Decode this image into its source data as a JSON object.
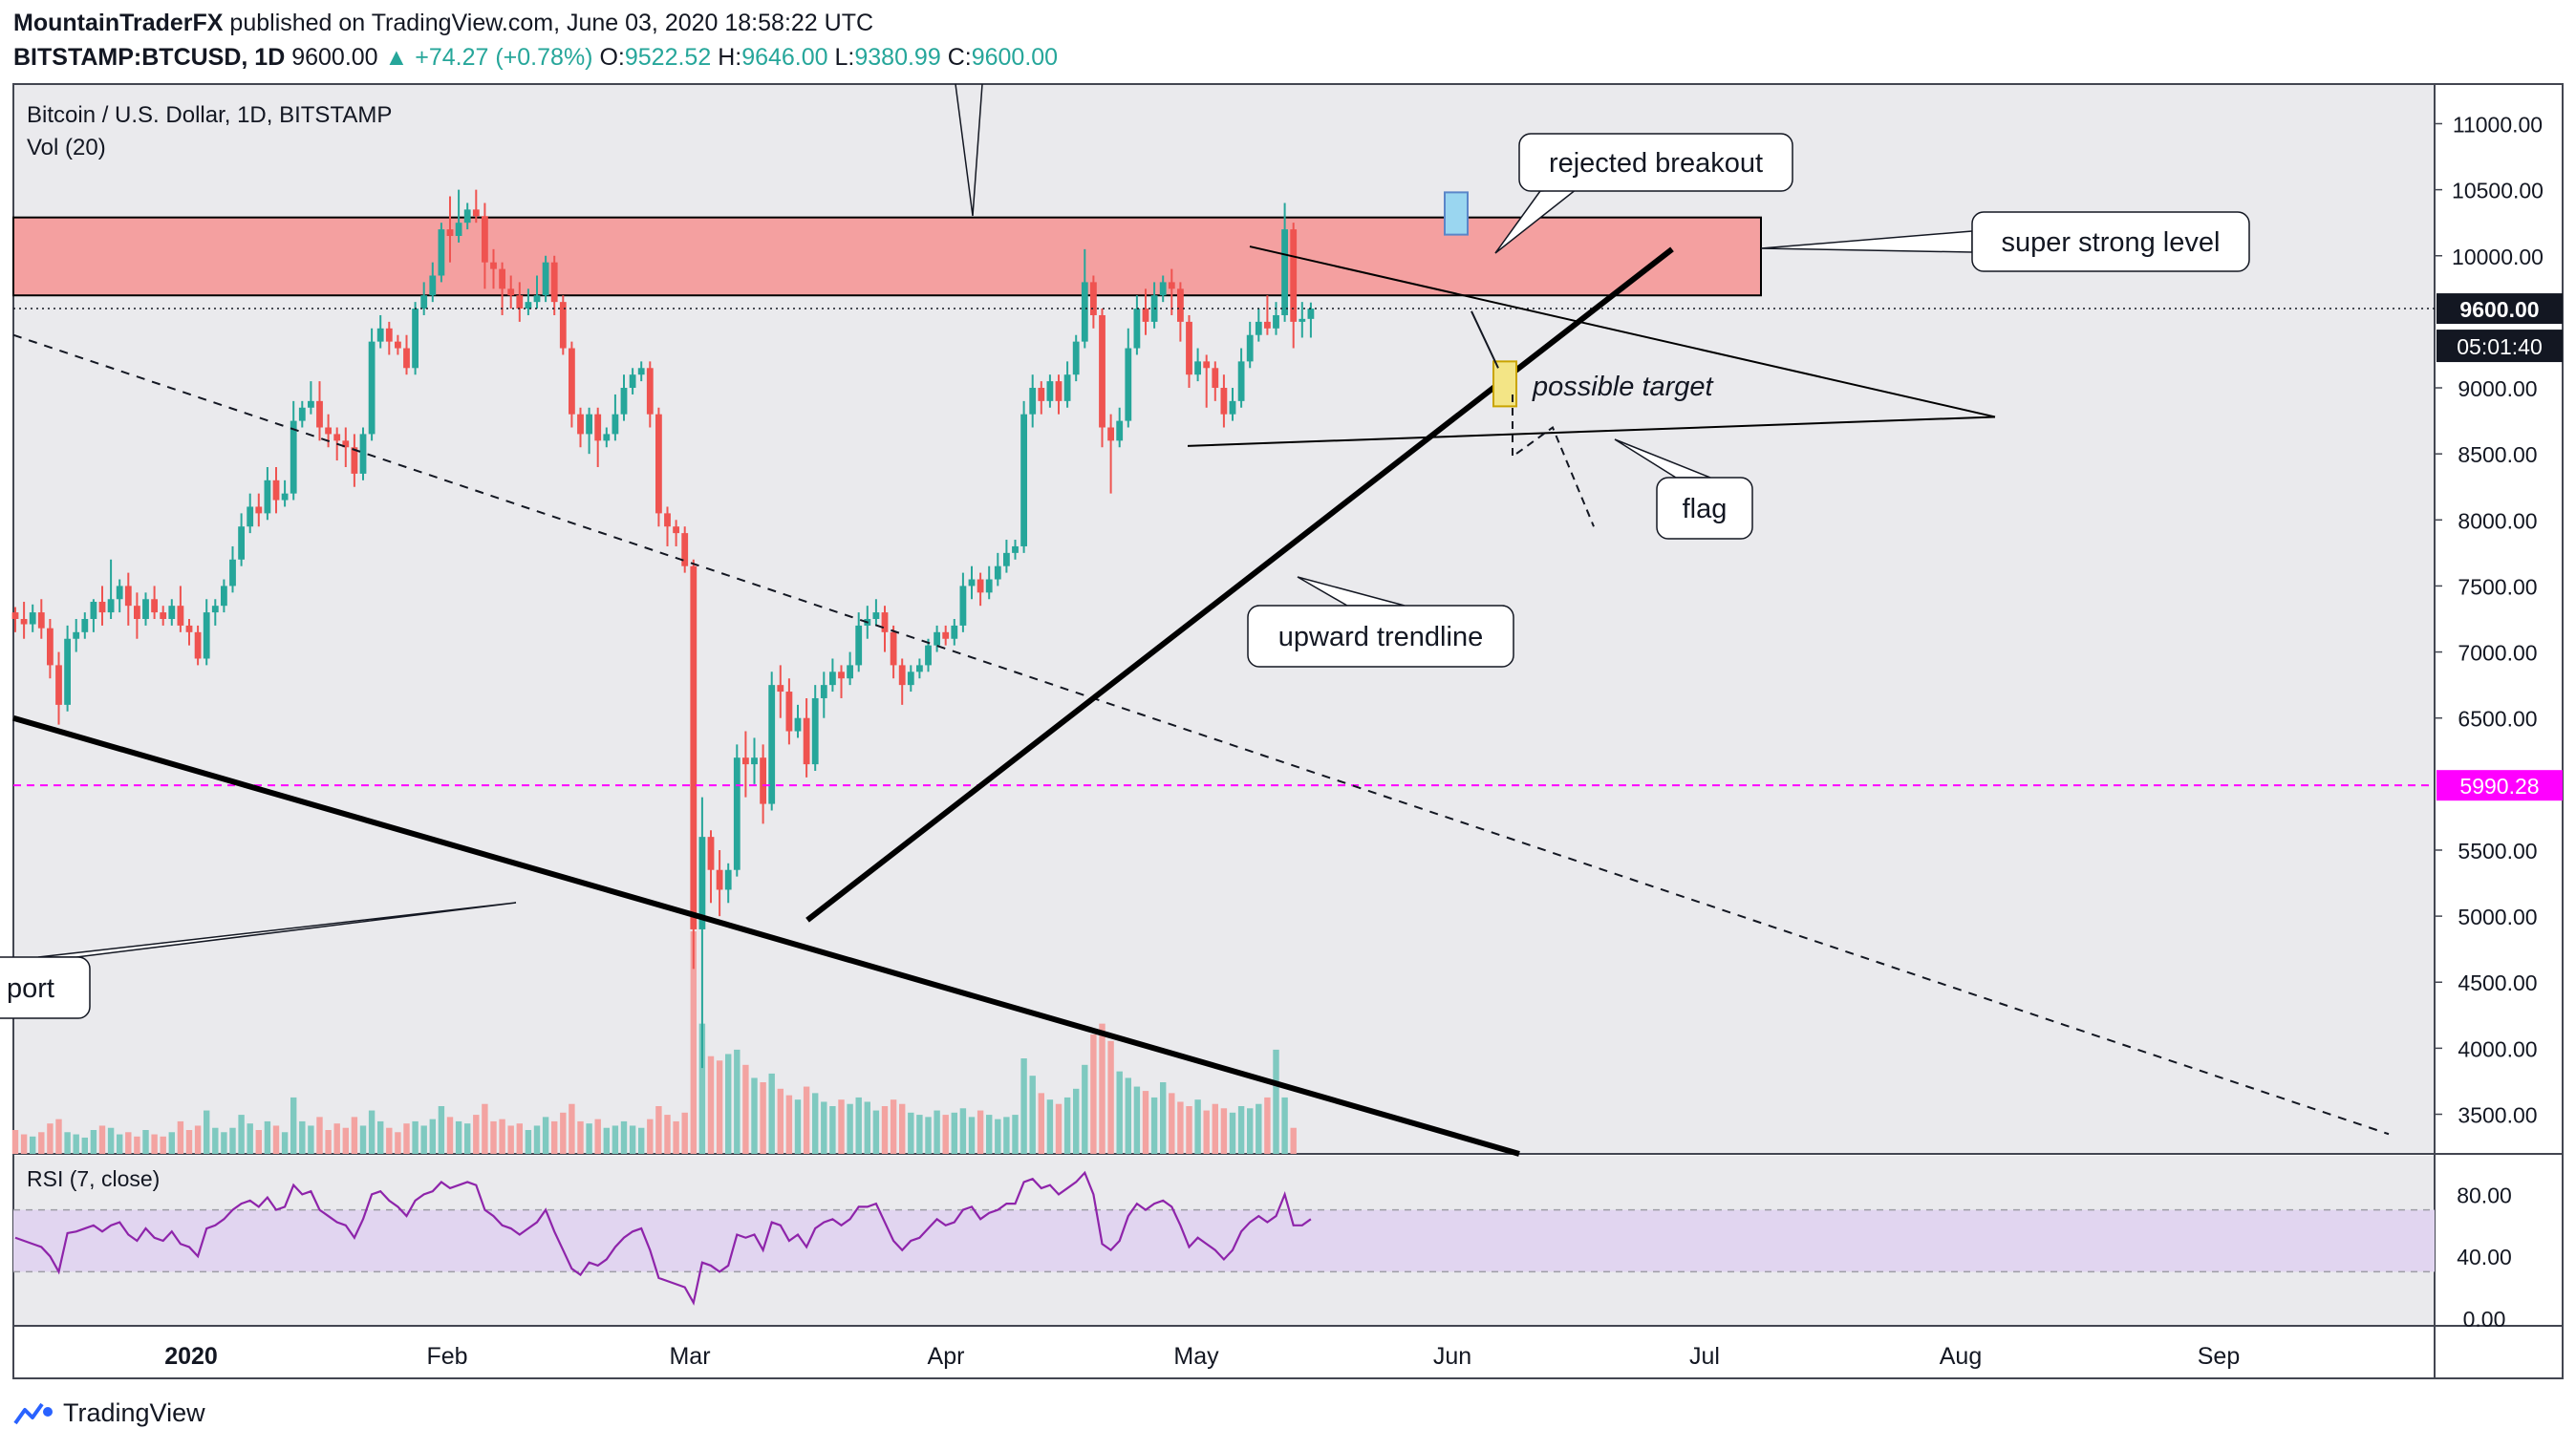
{
  "header": {
    "author": "MountainTraderFX",
    "published": "published on TradingView.com, June 03, 2020 18:58:22 UTC",
    "symbol": "BITSTAMP:BTCUSD, 1D",
    "last": "9600.00",
    "change": "+74.27 (+0.78%)",
    "o_label": "O:",
    "o_value": "9522.52",
    "h_label": "H:",
    "h_value": "9646.00",
    "l_label": "L:",
    "l_value": "9380.99",
    "c_label": "C:",
    "c_value": "9600.00",
    "up_arrow": "▲"
  },
  "footer": {
    "brand": "TradingView",
    "icon": "tradingview-logo-icon"
  },
  "colors": {
    "up": "#26a69a",
    "down": "#ef5350",
    "vol_up": "#7fc9c0",
    "vol_down": "#f3a3a1",
    "zone_fill": "#f4a0a0",
    "zone_stroke": "#000000",
    "magenta": "#ff00ff",
    "rsi_line": "#8e24aa",
    "rsi_band": "#e1d5f0",
    "grid_bg": "#eaeaed",
    "last_label_bg": "#131722"
  },
  "chart_data": {
    "type": "candlestick",
    "title": "Bitcoin / U.S. Dollar, 1D, BITSTAMP",
    "volume_label": "Vol (20)",
    "rsi_label": "RSI (7, close)",
    "y_ticks": [
      "11000.00",
      "10500.00",
      "10000.00",
      "9000.00",
      "8500.00",
      "8000.00",
      "7500.00",
      "7000.00",
      "6500.00",
      "5500.00",
      "5000.00",
      "4500.00",
      "4000.00",
      "3500.00"
    ],
    "ylim": [
      3200,
      11300
    ],
    "rsi_ticks": [
      "80.00",
      "40.00",
      "0.00"
    ],
    "x_ticks": [
      "2020",
      "Feb",
      "Mar",
      "Apr",
      "May",
      "Jun",
      "Jul",
      "Aug",
      "Sep"
    ],
    "last_price_label": "9600.00",
    "countdown_label": "05:01:40",
    "level_label": "5990.28",
    "level_value": 5990.28,
    "resistance_zone": [
      9700,
      10290
    ],
    "annotations": {
      "rejected_breakout": "rejected breakout",
      "super_strong_level": "super strong level",
      "possible_target": "possible target",
      "flag": "flag",
      "upward_trendline": "upward trendline",
      "support_partial": "port"
    },
    "candles": [
      [
        7300,
        7250,
        7150,
        7340
      ],
      [
        7250,
        7210,
        7100,
        7380
      ],
      [
        7210,
        7300,
        7150,
        7360
      ],
      [
        7300,
        7180,
        7100,
        7400
      ],
      [
        7180,
        6900,
        6800,
        7250
      ],
      [
        6900,
        6600,
        6450,
        7000
      ],
      [
        6600,
        7100,
        6550,
        7200
      ],
      [
        7100,
        7150,
        7000,
        7250
      ],
      [
        7150,
        7250,
        7100,
        7300
      ],
      [
        7250,
        7380,
        7150,
        7400
      ],
      [
        7380,
        7300,
        7200,
        7500
      ],
      [
        7300,
        7400,
        7250,
        7700
      ],
      [
        7400,
        7500,
        7300,
        7550
      ],
      [
        7500,
        7350,
        7200,
        7600
      ],
      [
        7350,
        7250,
        7100,
        7450
      ],
      [
        7250,
        7400,
        7200,
        7450
      ],
      [
        7400,
        7300,
        7250,
        7500
      ],
      [
        7300,
        7250,
        7200,
        7350
      ],
      [
        7250,
        7350,
        7200,
        7400
      ],
      [
        7350,
        7200,
        7150,
        7500
      ],
      [
        7200,
        7150,
        7050,
        7250
      ],
      [
        7150,
        6950,
        6900,
        7200
      ],
      [
        6950,
        7300,
        6900,
        7400
      ],
      [
        7300,
        7350,
        7200,
        7400
      ],
      [
        7350,
        7500,
        7300,
        7550
      ],
      [
        7500,
        7700,
        7450,
        7800
      ],
      [
        7700,
        7950,
        7650,
        8050
      ],
      [
        7950,
        8100,
        7900,
        8200
      ],
      [
        8100,
        8050,
        7950,
        8200
      ],
      [
        8050,
        8300,
        8000,
        8400
      ],
      [
        8300,
        8150,
        8050,
        8400
      ],
      [
        8150,
        8200,
        8100,
        8300
      ],
      [
        8200,
        8750,
        8150,
        8900
      ],
      [
        8750,
        8850,
        8700,
        8900
      ],
      [
        8850,
        8900,
        8800,
        9050
      ],
      [
        8900,
        8700,
        8600,
        9050
      ],
      [
        8700,
        8650,
        8550,
        8800
      ],
      [
        8650,
        8600,
        8450,
        8700
      ],
      [
        8600,
        8550,
        8400,
        8700
      ],
      [
        8550,
        8350,
        8250,
        8650
      ],
      [
        8350,
        8650,
        8300,
        8700
      ],
      [
        8650,
        9350,
        8600,
        9450
      ],
      [
        9350,
        9450,
        9300,
        9550
      ],
      [
        9450,
        9350,
        9250,
        9500
      ],
      [
        9350,
        9300,
        9250,
        9400
      ],
      [
        9300,
        9150,
        9100,
        9400
      ],
      [
        9150,
        9600,
        9100,
        9650
      ],
      [
        9600,
        9700,
        9550,
        9800
      ],
      [
        9700,
        9850,
        9650,
        9950
      ],
      [
        9850,
        10200,
        9800,
        10250
      ],
      [
        10200,
        10150,
        9950,
        10450
      ],
      [
        10150,
        10250,
        10100,
        10500
      ],
      [
        10250,
        10350,
        10200,
        10400
      ],
      [
        10350,
        10300,
        10250,
        10500
      ],
      [
        10300,
        9950,
        9750,
        10400
      ],
      [
        9950,
        9900,
        9750,
        10050
      ],
      [
        9900,
        9750,
        9550,
        9950
      ],
      [
        9750,
        9700,
        9600,
        9850
      ],
      [
        9700,
        9600,
        9500,
        9800
      ],
      [
        9600,
        9650,
        9550,
        9750
      ],
      [
        9650,
        9700,
        9600,
        9850
      ],
      [
        9700,
        9950,
        9650,
        10000
      ],
      [
        9950,
        9650,
        9550,
        10000
      ],
      [
        9650,
        9300,
        9250,
        9700
      ],
      [
        9300,
        8800,
        8700,
        9350
      ],
      [
        8800,
        8650,
        8550,
        8850
      ],
      [
        8650,
        8800,
        8500,
        8850
      ],
      [
        8800,
        8600,
        8400,
        8850
      ],
      [
        8600,
        8650,
        8550,
        8700
      ],
      [
        8650,
        8800,
        8600,
        8950
      ],
      [
        8800,
        9000,
        8750,
        9100
      ],
      [
        9000,
        9100,
        8950,
        9150
      ],
      [
        9100,
        9150,
        9050,
        9200
      ],
      [
        9150,
        8800,
        8700,
        9200
      ],
      [
        8800,
        8050,
        7950,
        8850
      ],
      [
        8050,
        7950,
        7800,
        8100
      ],
      [
        7950,
        7900,
        7800,
        8000
      ],
      [
        7900,
        7650,
        7600,
        7950
      ],
      [
        7650,
        4900,
        4600,
        7700
      ],
      [
        4900,
        5600,
        3850,
        5900
      ],
      [
        5600,
        5350,
        5100,
        5650
      ],
      [
        5350,
        5200,
        5000,
        5500
      ],
      [
        5200,
        5350,
        5100,
        5400
      ],
      [
        5350,
        6200,
        5300,
        6300
      ],
      [
        6200,
        6150,
        5900,
        6400
      ],
      [
        6150,
        6200,
        6000,
        6350
      ],
      [
        6200,
        5850,
        5700,
        6300
      ],
      [
        5850,
        6750,
        5800,
        6850
      ],
      [
        6750,
        6700,
        6500,
        6900
      ],
      [
        6700,
        6400,
        6300,
        6800
      ],
      [
        6400,
        6500,
        6350,
        6600
      ],
      [
        6500,
        6150,
        6050,
        6650
      ],
      [
        6150,
        6650,
        6100,
        6750
      ],
      [
        6650,
        6750,
        6500,
        6850
      ],
      [
        6750,
        6850,
        6700,
        6950
      ],
      [
        6850,
        6800,
        6650,
        6900
      ],
      [
        6800,
        6900,
        6750,
        7000
      ],
      [
        6900,
        7200,
        6850,
        7300
      ],
      [
        7200,
        7250,
        7100,
        7350
      ],
      [
        7250,
        7300,
        7200,
        7400
      ],
      [
        7300,
        7150,
        7000,
        7350
      ],
      [
        7150,
        6900,
        6800,
        7200
      ],
      [
        6900,
        6750,
        6600,
        6950
      ],
      [
        6750,
        6850,
        6700,
        6900
      ],
      [
        6850,
        6900,
        6800,
        6950
      ],
      [
        6900,
        7050,
        6850,
        7100
      ],
      [
        7050,
        7150,
        7000,
        7200
      ],
      [
        7150,
        7100,
        7050,
        7200
      ],
      [
        7100,
        7200,
        7050,
        7250
      ],
      [
        7200,
        7500,
        7150,
        7600
      ],
      [
        7500,
        7550,
        7400,
        7650
      ],
      [
        7550,
        7450,
        7350,
        7600
      ],
      [
        7450,
        7550,
        7400,
        7650
      ],
      [
        7550,
        7650,
        7500,
        7750
      ],
      [
        7650,
        7750,
        7600,
        7850
      ],
      [
        7750,
        7800,
        7700,
        7850
      ],
      [
        7800,
        8800,
        7750,
        8900
      ],
      [
        8800,
        9000,
        8700,
        9100
      ],
      [
        9000,
        8900,
        8800,
        9050
      ],
      [
        8900,
        9050,
        8850,
        9100
      ],
      [
        9050,
        8900,
        8800,
        9100
      ],
      [
        8900,
        9100,
        8850,
        9200
      ],
      [
        9100,
        9350,
        9050,
        9400
      ],
      [
        9350,
        9800,
        9300,
        10050
      ],
      [
        9800,
        9550,
        9450,
        9850
      ],
      [
        9550,
        8700,
        8550,
        9600
      ],
      [
        8700,
        8600,
        8200,
        8800
      ],
      [
        8600,
        8750,
        8550,
        8850
      ],
      [
        8750,
        9300,
        8700,
        9450
      ],
      [
        9300,
        9600,
        9250,
        9700
      ],
      [
        9600,
        9500,
        9400,
        9750
      ],
      [
        9500,
        9700,
        9450,
        9800
      ],
      [
        9700,
        9800,
        9650,
        9850
      ],
      [
        9800,
        9750,
        9550,
        9900
      ],
      [
        9750,
        9500,
        9350,
        9800
      ],
      [
        9500,
        9100,
        9000,
        9550
      ],
      [
        9100,
        9200,
        9050,
        9300
      ],
      [
        9200,
        9150,
        8850,
        9250
      ],
      [
        9150,
        9000,
        8900,
        9200
      ],
      [
        9000,
        8800,
        8700,
        9100
      ],
      [
        8800,
        8900,
        8750,
        9000
      ],
      [
        8900,
        9200,
        8850,
        9300
      ],
      [
        9200,
        9400,
        9150,
        9500
      ],
      [
        9400,
        9500,
        9350,
        9600
      ],
      [
        9500,
        9450,
        9400,
        9700
      ],
      [
        9450,
        9550,
        9400,
        9650
      ],
      [
        9550,
        10200,
        9500,
        10400
      ],
      [
        10200,
        9500,
        9300,
        10250
      ],
      [
        9500,
        9522,
        9380,
        9650
      ],
      [
        9522,
        9600,
        9380,
        9646
      ]
    ],
    "volume": [
      0.22,
      0.18,
      0.16,
      0.2,
      0.28,
      0.32,
      0.2,
      0.18,
      0.15,
      0.22,
      0.26,
      0.24,
      0.18,
      0.2,
      0.16,
      0.22,
      0.18,
      0.16,
      0.2,
      0.3,
      0.22,
      0.26,
      0.4,
      0.24,
      0.2,
      0.24,
      0.36,
      0.28,
      0.22,
      0.3,
      0.26,
      0.2,
      0.52,
      0.3,
      0.26,
      0.34,
      0.22,
      0.28,
      0.24,
      0.34,
      0.26,
      0.4,
      0.3,
      0.24,
      0.2,
      0.28,
      0.3,
      0.26,
      0.32,
      0.44,
      0.34,
      0.3,
      0.28,
      0.36,
      0.46,
      0.3,
      0.32,
      0.26,
      0.28,
      0.22,
      0.26,
      0.34,
      0.3,
      0.38,
      0.46,
      0.3,
      0.28,
      0.32,
      0.24,
      0.26,
      0.3,
      0.26,
      0.24,
      0.32,
      0.44,
      0.36,
      0.3,
      0.38,
      2.05,
      1.2,
      0.9,
      0.86,
      0.92,
      0.96,
      0.82,
      0.7,
      0.66,
      0.74,
      0.6,
      0.54,
      0.5,
      0.62,
      0.56,
      0.48,
      0.44,
      0.5,
      0.46,
      0.52,
      0.48,
      0.4,
      0.44,
      0.5,
      0.46,
      0.38,
      0.36,
      0.34,
      0.4,
      0.36,
      0.38,
      0.42,
      0.34,
      0.4,
      0.36,
      0.32,
      0.34,
      0.36,
      0.88,
      0.72,
      0.56,
      0.5,
      0.46,
      0.52,
      0.6,
      0.82,
      1.1,
      1.2,
      1.04,
      0.76,
      0.7,
      0.62,
      0.58,
      0.52,
      0.66,
      0.56,
      0.48,
      0.44,
      0.5,
      0.4,
      0.46,
      0.42,
      0.38,
      0.44,
      0.42,
      0.46,
      0.52,
      0.96,
      0.52,
      0.24
    ],
    "rsi": [
      52,
      50,
      48,
      46,
      40,
      30,
      55,
      56,
      58,
      60,
      56,
      60,
      62,
      54,
      50,
      58,
      52,
      50,
      56,
      48,
      46,
      40,
      58,
      60,
      64,
      70,
      74,
      76,
      72,
      78,
      70,
      72,
      86,
      80,
      82,
      70,
      66,
      62,
      60,
      52,
      64,
      80,
      82,
      76,
      72,
      66,
      76,
      80,
      82,
      88,
      84,
      86,
      88,
      86,
      70,
      66,
      60,
      58,
      54,
      58,
      62,
      70,
      56,
      44,
      32,
      28,
      36,
      34,
      38,
      46,
      52,
      56,
      58,
      44,
      26,
      24,
      22,
      20,
      10,
      36,
      34,
      30,
      34,
      54,
      52,
      54,
      44,
      62,
      60,
      50,
      54,
      46,
      58,
      62,
      64,
      60,
      64,
      72,
      72,
      74,
      62,
      50,
      44,
      50,
      52,
      58,
      64,
      60,
      62,
      70,
      72,
      64,
      68,
      70,
      74,
      74,
      88,
      90,
      84,
      86,
      80,
      84,
      88,
      94,
      80,
      48,
      44,
      50,
      66,
      74,
      70,
      74,
      76,
      72,
      60,
      46,
      52,
      48,
      44,
      38,
      44,
      56,
      62,
      66,
      62,
      66,
      80,
      60,
      60,
      64
    ]
  }
}
